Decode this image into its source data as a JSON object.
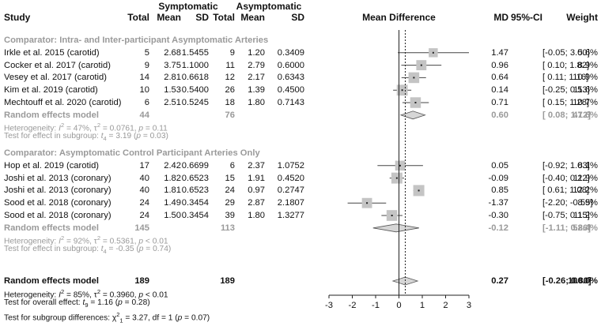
{
  "chart_data": {
    "type": "forest",
    "header": {
      "study": "Study",
      "symptomatic": "Symptomatic",
      "asymptomatic": "Asymptomatic",
      "total": "Total",
      "mean": "Mean",
      "sd": "SD",
      "mean_difference": "Mean Difference",
      "md": "MD",
      "ci": "95%-CI",
      "weight": "Weight"
    },
    "xlim": [
      -3,
      3
    ],
    "ticks": [
      -3,
      -2,
      -1,
      0,
      1,
      2,
      3
    ],
    "null_line": 0,
    "subgroups": [
      {
        "title": "Comparator: Intra- and Inter-participant Asymptomatic Arteries",
        "studies": [
          {
            "study": "Irkle et al. 2015 (carotid)",
            "n1": "5",
            "m1": "2.68",
            "sd1": "1.5455",
            "n2": "9",
            "m2": "1.20",
            "sd2": "0.3409",
            "md": 1.47,
            "lo": -0.05,
            "hi": 3.0,
            "md_text": "1.47",
            "ci_text": "[-0.05; 3.00]",
            "weight": "5.6%",
            "w": 5.6
          },
          {
            "study": "Cocker et al. 2017 (carotid)",
            "n1": "9",
            "m1": "3.75",
            "sd1": "1.1000",
            "n2": "11",
            "m2": "2.79",
            "sd2": "0.6000",
            "md": 0.96,
            "lo": 0.1,
            "hi": 1.82,
            "md_text": "0.96",
            "ci_text": "[ 0.10; 1.82]",
            "weight": "8.9%",
            "w": 8.9
          },
          {
            "study": "Vesey et al. 2017 (carotid)",
            "n1": "14",
            "m1": "2.81",
            "sd1": "0.6618",
            "n2": "12",
            "m2": "2.17",
            "sd2": "0.6343",
            "md": 0.64,
            "lo": 0.11,
            "hi": 1.16,
            "md_text": "0.64",
            "ci_text": "[ 0.11; 1.16]",
            "weight": "10.9%",
            "w": 10.9
          },
          {
            "study": "Kim et al. 2019 (carotid)",
            "n1": "10",
            "m1": "1.53",
            "sd1": "0.5400",
            "n2": "26",
            "m2": "1.39",
            "sd2": "0.4500",
            "md": 0.14,
            "lo": -0.25,
            "hi": 0.53,
            "md_text": "0.14",
            "ci_text": "[-0.25; 0.53]",
            "weight": "11.6%",
            "w": 11.6
          },
          {
            "study": "Mechtouff et al. 2020 (carotid)",
            "n1": "6",
            "m1": "2.51",
            "sd1": "0.5245",
            "n2": "18",
            "m2": "1.80",
            "sd2": "0.7143",
            "md": 0.71,
            "lo": 0.15,
            "hi": 1.28,
            "md_text": "0.71",
            "ci_text": "[ 0.15; 1.28]",
            "weight": "10.7%",
            "w": 10.7
          }
        ],
        "random": {
          "label": "Random effects model",
          "n1": "44",
          "n2": "76",
          "md": 0.6,
          "lo": 0.08,
          "hi": 1.12,
          "md_text": "0.60",
          "ci_text": "[ 0.08; 1.12]",
          "weight": "47.6%"
        },
        "heterogeneity": {
          "prefix": "Heterogeneity: ",
          "I": "I",
          "sup": "2",
          "mid": " = 47%, ",
          "tau": "τ",
          "tau_sup": "2",
          "rest": " = 0.0761, ",
          "p": "p",
          "pval": " = 0.11"
        },
        "test": {
          "prefix": "Test for effect in subgroup: ",
          "t": "t",
          "sub": "4",
          "eq": " = 3.19 (",
          "p": "p",
          "pval": " = 0.03)"
        }
      },
      {
        "title": "Comparator: Asymptomatic Control Participant Arteries Only",
        "studies": [
          {
            "study": "Hop et al. 2019 (carotid)",
            "n1": "17",
            "m1": "2.42",
            "sd1": "0.6699",
            "n2": "6",
            "m2": "2.37",
            "sd2": "1.0752",
            "md": 0.05,
            "lo": -0.92,
            "hi": 1.03,
            "md_text": "0.05",
            "ci_text": "[-0.92; 1.03]",
            "weight": "8.1%",
            "w": 8.1
          },
          {
            "study": "Joshi et al. 2013 (coronary)",
            "n1": "40",
            "m1": "1.82",
            "sd1": "0.6523",
            "n2": "15",
            "m2": "1.91",
            "sd2": "0.4520",
            "md": -0.09,
            "lo": -0.4,
            "hi": 0.22,
            "md_text": "-0.09",
            "ci_text": "[-0.40; 0.22]",
            "weight": "11.9%",
            "w": 11.9
          },
          {
            "study": "Joshi et al. 2013 (coronary)",
            "n1": "40",
            "m1": "1.81",
            "sd1": "0.6523",
            "n2": "24",
            "m2": "0.97",
            "sd2": "0.2747",
            "md": 0.85,
            "lo": 0.61,
            "hi": 1.08,
            "md_text": "0.85",
            "ci_text": "[ 0.61; 1.08]",
            "weight": "12.2%",
            "w": 12.2
          },
          {
            "study": "Sood et al. 2018 (coronary)",
            "n1": "24",
            "m1": "1.49",
            "sd1": "0.3454",
            "n2": "29",
            "m2": "2.87",
            "sd2": "2.1807",
            "md": -1.37,
            "lo": -2.2,
            "hi": -0.55,
            "md_text": "-1.37",
            "ci_text": "[-2.20; -0.55]",
            "weight": "8.9%",
            "w": 8.9
          },
          {
            "study": "Sood et al. 2018 (coronary)",
            "n1": "24",
            "m1": "1.50",
            "sd1": "0.3454",
            "n2": "39",
            "m2": "1.80",
            "sd2": "1.3277",
            "md": -0.3,
            "lo": -0.75,
            "hi": 0.15,
            "md_text": "-0.30",
            "ci_text": "[-0.75; 0.15]",
            "weight": "11.2%",
            "w": 11.2
          }
        ],
        "random": {
          "label": "Random effects model",
          "n1": "145",
          "n2": "113",
          "md": -0.12,
          "lo": -1.11,
          "hi": 0.86,
          "md_text": "-0.12",
          "ci_text": "[-1.11; 0.86]",
          "weight": "52.4%"
        },
        "heterogeneity": {
          "prefix": "Heterogeneity: ",
          "I": "I",
          "sup": "2",
          "mid": " = 92%, ",
          "tau": "τ",
          "tau_sup": "2",
          "rest": " = 0.5361, ",
          "p": "p",
          "pval": " < 0.01"
        },
        "test": {
          "prefix": "Test for effect in subgroup: ",
          "t": "t",
          "sub": "4",
          "eq": " = -0.35 (",
          "p": "p",
          "pval": " = 0.74)"
        }
      }
    ],
    "overall": {
      "random": {
        "label": "Random effects model",
        "n1": "189",
        "n2": "189",
        "md": 0.27,
        "lo": -0.26,
        "hi": 0.8,
        "md_text": "0.27",
        "ci_text": "[-0.26; 0.80]",
        "weight": "100.0%"
      },
      "heterogeneity": {
        "prefix": "Heterogeneity: ",
        "I": "I",
        "sup": "2",
        "mid": " = 85%, ",
        "tau": "τ",
        "tau_sup": "2",
        "rest": " = 0.3960, ",
        "p": "p",
        "pval": " < 0.01"
      },
      "test_overall": {
        "prefix": "Test for overall effect: ",
        "t": "t",
        "sub": "9",
        "eq": " = 1.16 (",
        "p": "p",
        "pval": " = 0.28)"
      },
      "test_subgroup": {
        "prefix": "Test for subgroup differences: ",
        "chi": "χ",
        "sup": "2",
        "sub": "1",
        "rest": " = 3.27, df = 1 (",
        "p": "p",
        "pval": " = 0.07)"
      }
    }
  }
}
